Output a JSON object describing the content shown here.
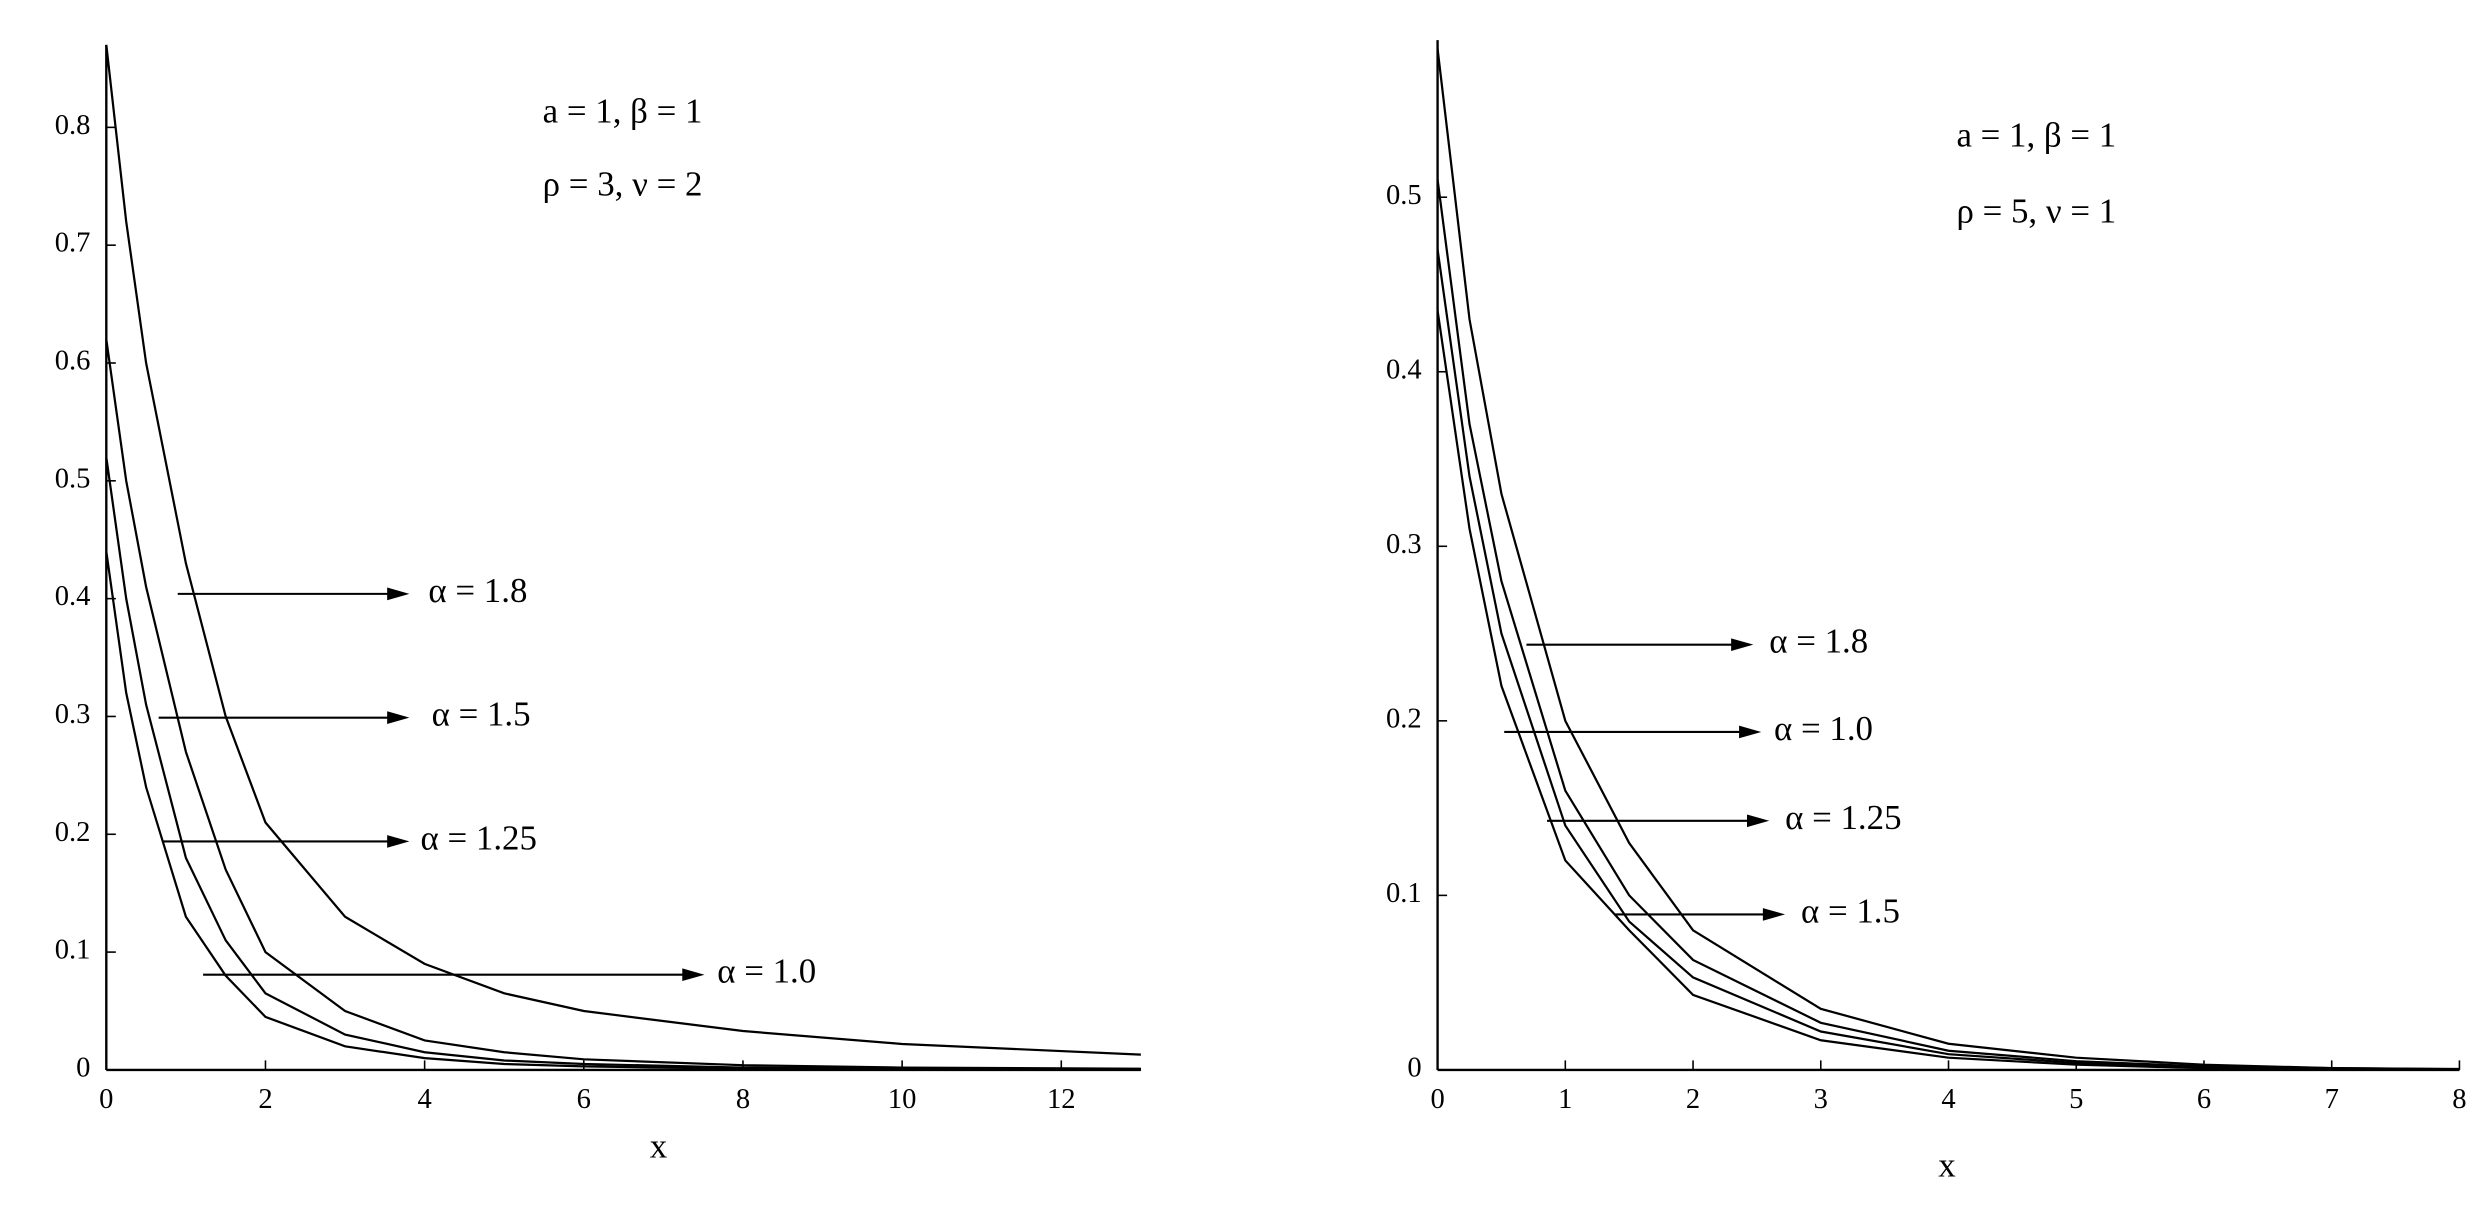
{
  "chart_data": [
    {
      "type": "line",
      "xlabel": "x",
      "annotations": [
        "a = 1, β = 1",
        "ρ = 3, ν = 2"
      ],
      "x": [
        0,
        0.25,
        0.5,
        1,
        1.5,
        2,
        3,
        4,
        5,
        6,
        8,
        10,
        13
      ],
      "series": [
        {
          "name": "α = 1.8",
          "color": "#000000",
          "values": [
            0.87,
            0.72,
            0.6,
            0.43,
            0.3,
            0.21,
            0.13,
            0.09,
            0.065,
            0.05,
            0.033,
            0.022,
            0.013
          ]
        },
        {
          "name": "α = 1.5",
          "color": "#000000",
          "values": [
            0.62,
            0.5,
            0.41,
            0.27,
            0.17,
            0.1,
            0.05,
            0.025,
            0.015,
            0.009,
            0.004,
            0.002,
            0.001
          ]
        },
        {
          "name": "α = 1.25",
          "color": "#000000",
          "values": [
            0.52,
            0.4,
            0.31,
            0.18,
            0.11,
            0.065,
            0.03,
            0.015,
            0.008,
            0.005,
            0.002,
            0.001,
            0.0005
          ]
        },
        {
          "name": "α = 1.0",
          "color": "#000000",
          "values": [
            0.44,
            0.32,
            0.24,
            0.13,
            0.08,
            0.045,
            0.02,
            0.01,
            0.005,
            0.003,
            0.001,
            0.0005,
            0.0002
          ]
        }
      ],
      "xlim": [
        0,
        13
      ],
      "ylim": [
        0,
        0.87
      ],
      "xticks": [
        0,
        2,
        4,
        6,
        8,
        10,
        12
      ],
      "yticks": [
        0,
        0.1,
        0.2,
        0.3,
        0.4,
        0.5,
        0.6,
        0.7,
        0.8
      ]
    },
    {
      "type": "line",
      "xlabel": "x",
      "annotations": [
        "a = 1, β = 1",
        "ρ = 5, ν = 1"
      ],
      "x": [
        0,
        0.25,
        0.5,
        1,
        1.5,
        2,
        3,
        4,
        5,
        6,
        7,
        8
      ],
      "series": [
        {
          "name": "α = 1.8",
          "color": "#000000",
          "values": [
            0.585,
            0.43,
            0.33,
            0.2,
            0.13,
            0.08,
            0.035,
            0.015,
            0.007,
            0.003,
            0.001,
            0.0005
          ]
        },
        {
          "name": "α = 1.0",
          "color": "#000000",
          "values": [
            0.51,
            0.37,
            0.28,
            0.16,
            0.1,
            0.063,
            0.027,
            0.011,
            0.005,
            0.002,
            0.001,
            0.0004
          ]
        },
        {
          "name": "α = 1.25",
          "color": "#000000",
          "values": [
            0.47,
            0.34,
            0.25,
            0.14,
            0.085,
            0.053,
            0.022,
            0.009,
            0.004,
            0.002,
            0.0008,
            0.0003
          ]
        },
        {
          "name": "α = 1.5",
          "color": "#000000",
          "values": [
            0.435,
            0.31,
            0.22,
            0.12,
            0.08,
            0.043,
            0.017,
            0.007,
            0.003,
            0.001,
            0.0005,
            0.0002
          ]
        }
      ],
      "xlim": [
        0,
        8
      ],
      "ylim": [
        0,
        0.59
      ],
      "xticks": [
        0,
        1,
        2,
        3,
        4,
        5,
        6,
        7,
        8
      ],
      "yticks": [
        0,
        0.1,
        0.2,
        0.3,
        0.4,
        0.5
      ]
    }
  ]
}
